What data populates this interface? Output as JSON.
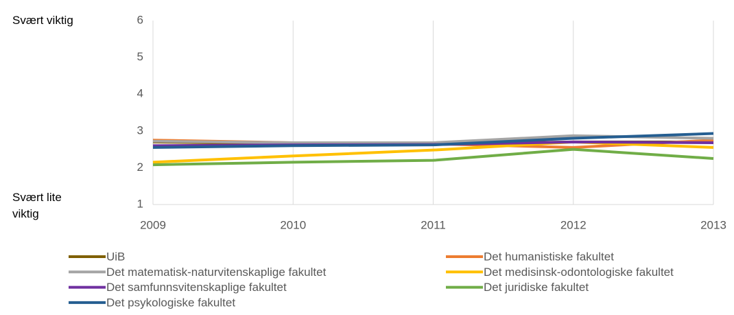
{
  "chart_data": {
    "type": "line",
    "annotations": [
      "Svært viktig",
      "Svært lite viktig"
    ],
    "x": [
      2009,
      2010,
      2011,
      2012,
      2013
    ],
    "xlim": [
      2009,
      2013
    ],
    "xticks": [
      2009,
      2010,
      2011,
      2012,
      2013
    ],
    "ylim": [
      1,
      6
    ],
    "yticks": [
      1,
      2,
      3,
      4,
      5,
      6
    ],
    "grid": true,
    "series": [
      {
        "name": "UiB",
        "color": "#7f6000",
        "values": [
          2.7,
          2.65,
          2.65,
          2.7,
          2.7
        ]
      },
      {
        "name": "Det humanistiske fakultet",
        "color": "#ed7d31",
        "values": [
          2.75,
          2.68,
          2.65,
          2.55,
          2.75
        ]
      },
      {
        "name": "Det matematisk-naturvitenskaplige fakultet",
        "color": "#a5a5a5",
        "values": [
          2.72,
          2.68,
          2.68,
          2.87,
          2.8
        ]
      },
      {
        "name": "Det medisinsk-odontologiske fakultet",
        "color": "#ffc000",
        "values": [
          2.15,
          2.32,
          2.48,
          2.7,
          2.55
        ]
      },
      {
        "name": "Det samfunnsvitenskaplige fakultet",
        "color": "#7030a0",
        "values": [
          2.6,
          2.62,
          2.63,
          2.7,
          2.68
        ]
      },
      {
        "name": "Det juridiske fakultet",
        "color": "#70ad47",
        "values": [
          2.08,
          2.15,
          2.2,
          2.5,
          2.25
        ]
      },
      {
        "name": "Det psykologiske fakultet",
        "color": "#255e91",
        "values": [
          2.55,
          2.6,
          2.62,
          2.8,
          2.93
        ]
      }
    ]
  }
}
